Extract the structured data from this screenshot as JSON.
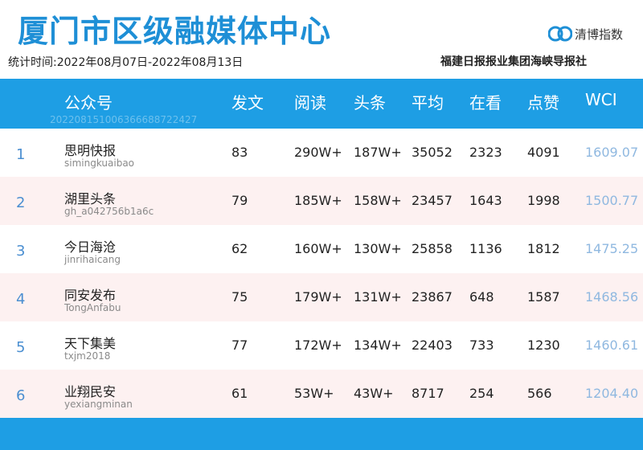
{
  "header": {
    "title": "厦门市区级融媒体中心",
    "period": "统计时间:2022年08月07日-2022年08月13日",
    "publisher": "福建日报报业集团海峡导报社",
    "logo_text": "清博指数"
  },
  "table": {
    "columns": [
      "公众号",
      "发文",
      "阅读",
      "头条",
      "平均",
      "在看",
      "点赞",
      "WCI"
    ],
    "header_code": "20220815100636668872​2427",
    "rows": [
      {
        "rank": "1",
        "name": "思明快报",
        "account": "simingkuaibao",
        "posts": "83",
        "reads": "290W+",
        "headline": "187W+",
        "avg": "35052",
        "looking": "2323",
        "likes": "4091",
        "wci": "1609.07"
      },
      {
        "rank": "2",
        "name": "湖里头条",
        "account": "gh_a042756b1a6c",
        "posts": "79",
        "reads": "185W+",
        "headline": "158W+",
        "avg": "23457",
        "looking": "1643",
        "likes": "1998",
        "wci": "1500.77"
      },
      {
        "rank": "3",
        "name": "今日海沧",
        "account": "jinrihaicang",
        "posts": "62",
        "reads": "160W+",
        "headline": "130W+",
        "avg": "25858",
        "looking": "1136",
        "likes": "1812",
        "wci": "1475.25"
      },
      {
        "rank": "4",
        "name": "同安发布",
        "account": "TongAnfabu",
        "posts": "75",
        "reads": "179W+",
        "headline": "131W+",
        "avg": "23867",
        "looking": "648",
        "likes": "1587",
        "wci": "1468.56"
      },
      {
        "rank": "5",
        "name": "天下集美",
        "account": "txjm2018",
        "posts": "77",
        "reads": "172W+",
        "headline": "134W+",
        "avg": "22403",
        "looking": "733",
        "likes": "1230",
        "wci": "1460.61"
      },
      {
        "rank": "6",
        "name": "业翔民安",
        "account": "yexiangminan",
        "posts": "61",
        "reads": "53W+",
        "headline": "43W+",
        "avg": "8717",
        "looking": "254",
        "likes": "566",
        "wci": "1204.40"
      }
    ]
  },
  "colors": {
    "accent": "#1e9ee4",
    "title": "#1e8fd6",
    "row_alt": "#fdf1f1",
    "wci": "#8fb8e0"
  }
}
